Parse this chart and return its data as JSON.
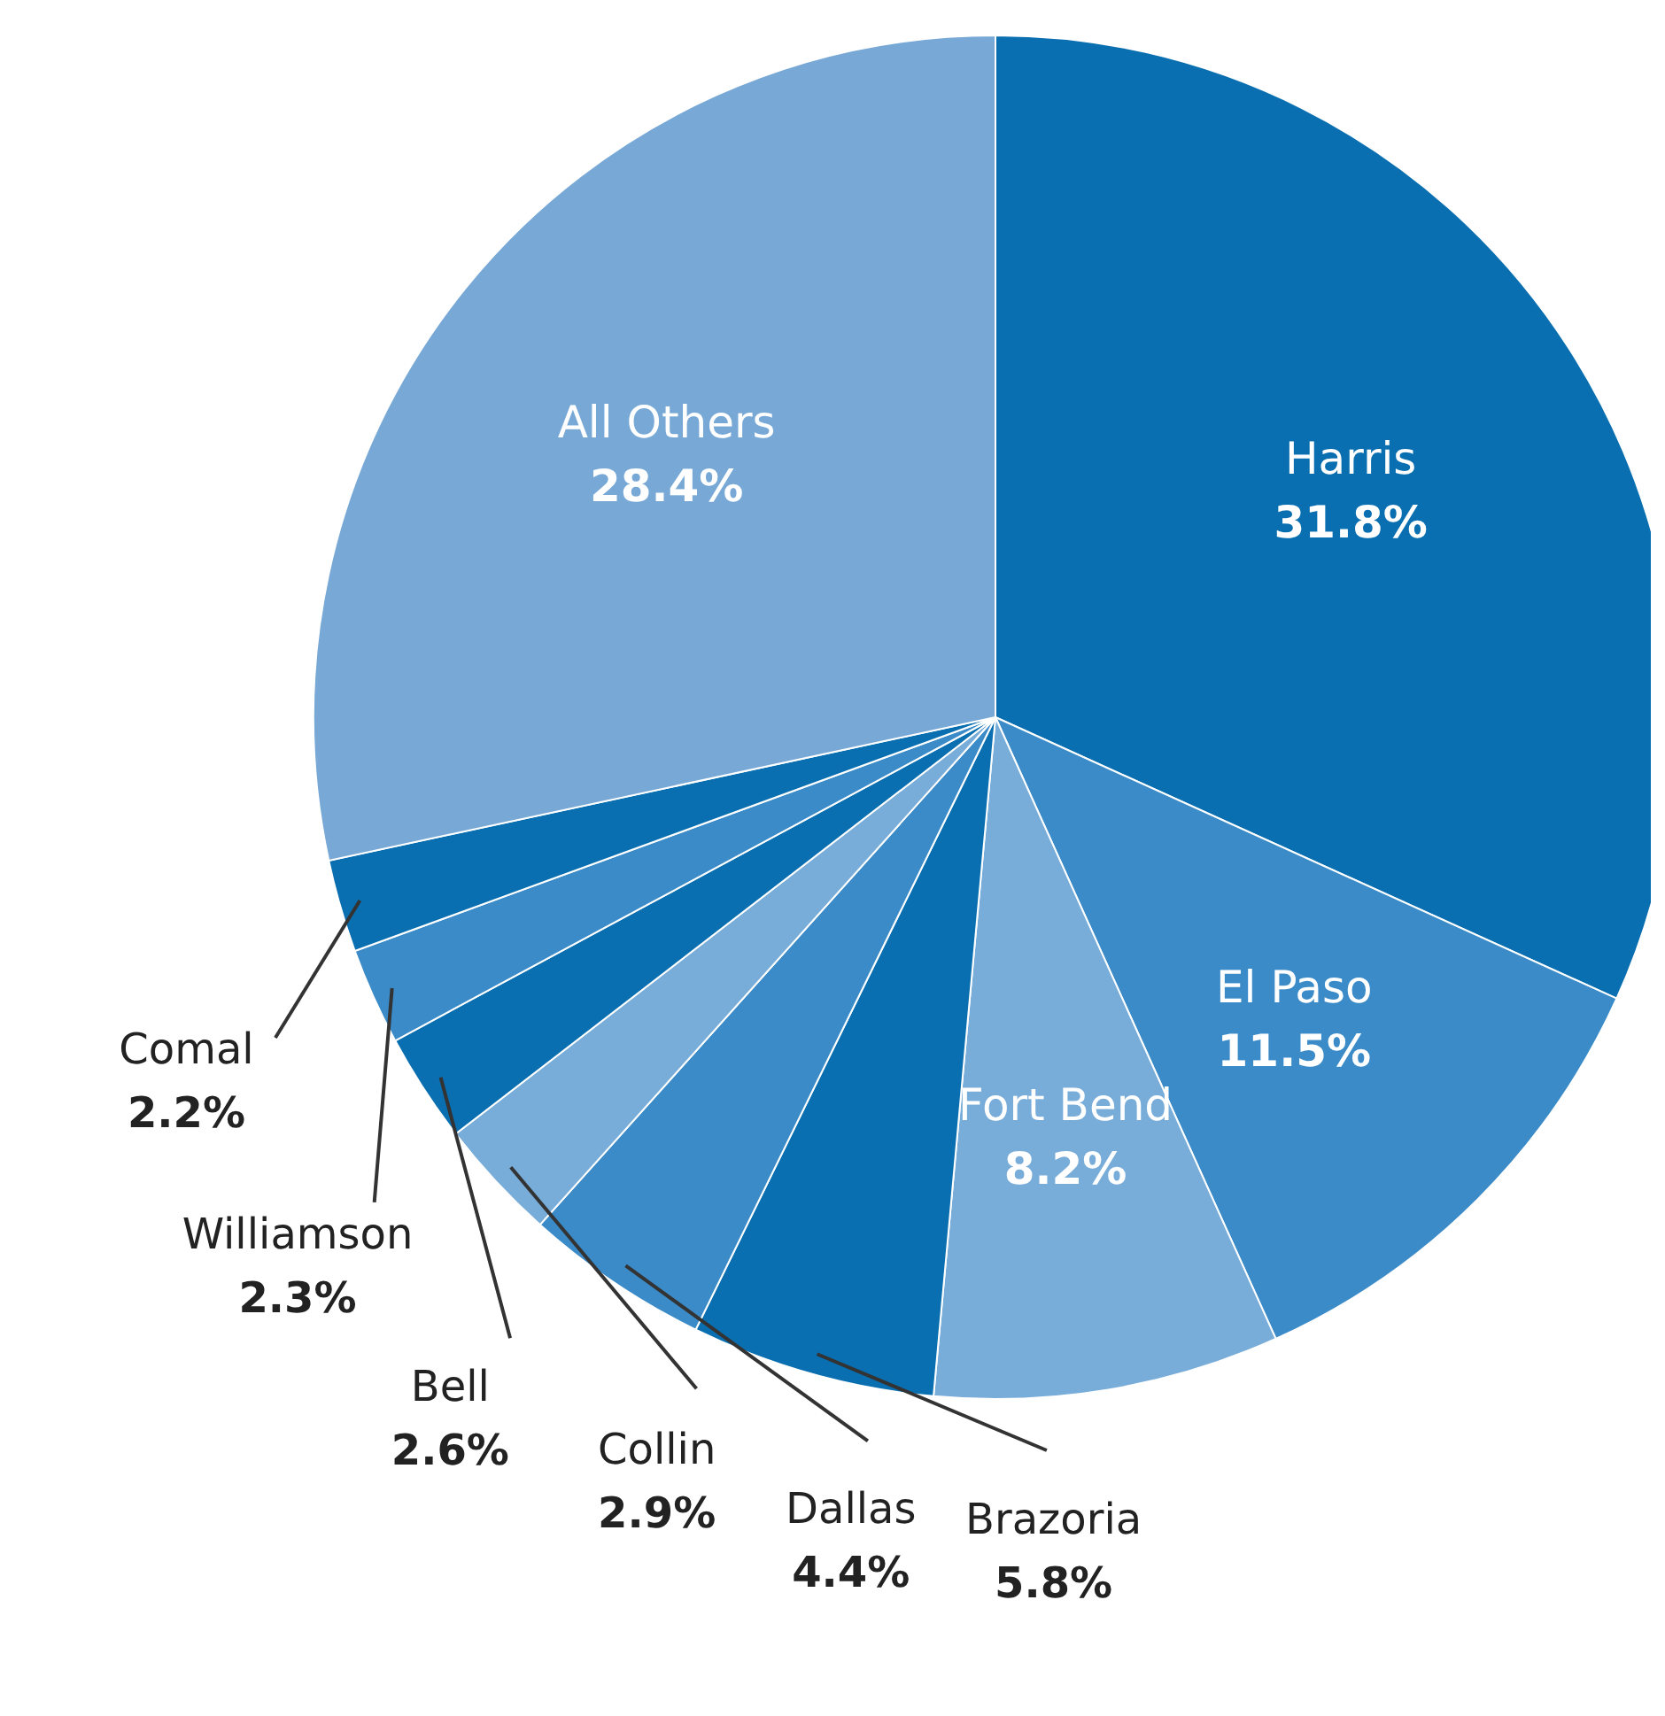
{
  "chart_data": {
    "type": "pie",
    "categories": [
      "Harris",
      "El Paso",
      "Fort Bend",
      "Brazoria",
      "Dallas",
      "Collin",
      "Bell",
      "Williamson",
      "Comal",
      "All Others"
    ],
    "values": [
      31.8,
      11.5,
      8.2,
      5.8,
      4.4,
      2.9,
      2.6,
      2.3,
      2.2,
      28.4
    ],
    "value_labels": [
      "31.8%",
      "11.5%",
      "8.2%",
      "5.8%",
      "4.4%",
      "2.9%",
      "2.6%",
      "2.3%",
      "2.2%",
      "28.4%"
    ],
    "colors": [
      "#0a6fb0",
      "#3b8bc8",
      "#78acd9",
      "#0a6fb0",
      "#3b8bc8",
      "#78acd9",
      "#0a6fb0",
      "#3b8bc8",
      "#0a6fb0",
      "#78a9d6"
    ]
  }
}
